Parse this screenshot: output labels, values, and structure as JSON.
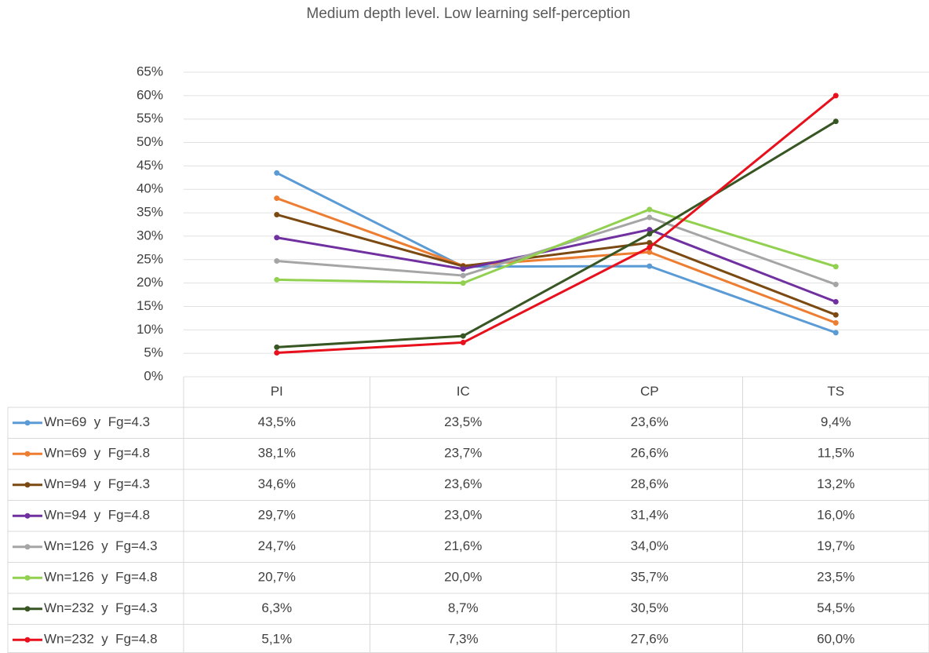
{
  "chart_data": {
    "type": "line",
    "title": "Medium depth level. Low learning self-perception",
    "categories": [
      "PI",
      "IC",
      "CP",
      "TS"
    ],
    "ylim": [
      0,
      65
    ],
    "yticks": [
      {
        "value": 0,
        "label": "0%"
      },
      {
        "value": 5,
        "label": "5%"
      },
      {
        "value": 10,
        "label": "10%"
      },
      {
        "value": 15,
        "label": "15%"
      },
      {
        "value": 20,
        "label": "20%"
      },
      {
        "value": 25,
        "label": "25%"
      },
      {
        "value": 30,
        "label": "30%"
      },
      {
        "value": 35,
        "label": "35%"
      },
      {
        "value": 40,
        "label": "40%"
      },
      {
        "value": 45,
        "label": "45%"
      },
      {
        "value": 50,
        "label": "50%"
      },
      {
        "value": 55,
        "label": "55%"
      },
      {
        "value": 60,
        "label": "60%"
      },
      {
        "value": 65,
        "label": "65%"
      }
    ],
    "grid": true,
    "series": [
      {
        "name": "Wn=69  y  Fg=4.3",
        "color": "#5b9bd5",
        "values": [
          43.5,
          23.5,
          23.6,
          9.4
        ],
        "value_labels": [
          "43,5%",
          "23,5%",
          "23,6%",
          "9,4%"
        ]
      },
      {
        "name": "Wn=69  y  Fg=4.8",
        "color": "#ed7d31",
        "values": [
          38.1,
          23.7,
          26.6,
          11.5
        ],
        "value_labels": [
          "38,1%",
          "23,7%",
          "26,6%",
          "11,5%"
        ]
      },
      {
        "name": "Wn=94  y  Fg=4.3",
        "color": "#7b4a12",
        "values": [
          34.6,
          23.6,
          28.6,
          13.2
        ],
        "value_labels": [
          "34,6%",
          "23,6%",
          "28,6%",
          "13,2%"
        ]
      },
      {
        "name": "Wn=94  y  Fg=4.8",
        "color": "#7030a0",
        "values": [
          29.7,
          23.0,
          31.4,
          16.0
        ],
        "value_labels": [
          "29,7%",
          "23,0%",
          "31,4%",
          "16,0%"
        ]
      },
      {
        "name": "Wn=126  y  Fg=4.3",
        "color": "#a5a5a5",
        "values": [
          24.7,
          21.6,
          34.0,
          19.7
        ],
        "value_labels": [
          "24,7%",
          "21,6%",
          "34,0%",
          "19,7%"
        ]
      },
      {
        "name": "Wn=126  y  Fg=4.8",
        "color": "#92d050",
        "values": [
          20.7,
          20.0,
          35.7,
          23.5
        ],
        "value_labels": [
          "20,7%",
          "20,0%",
          "35,7%",
          "23,5%"
        ]
      },
      {
        "name": "Wn=232  y  Fg=4.3",
        "color": "#375623",
        "values": [
          6.3,
          8.7,
          30.5,
          54.5
        ],
        "value_labels": [
          "6,3%",
          "8,7%",
          "30,5%",
          "54,5%"
        ]
      },
      {
        "name": "Wn=232  y  Fg=4.8",
        "color": "#e8101c",
        "values": [
          5.1,
          7.3,
          27.6,
          60.0
        ],
        "value_labels": [
          "5,1%",
          "7,3%",
          "27,6%",
          "60,0%"
        ]
      }
    ]
  }
}
